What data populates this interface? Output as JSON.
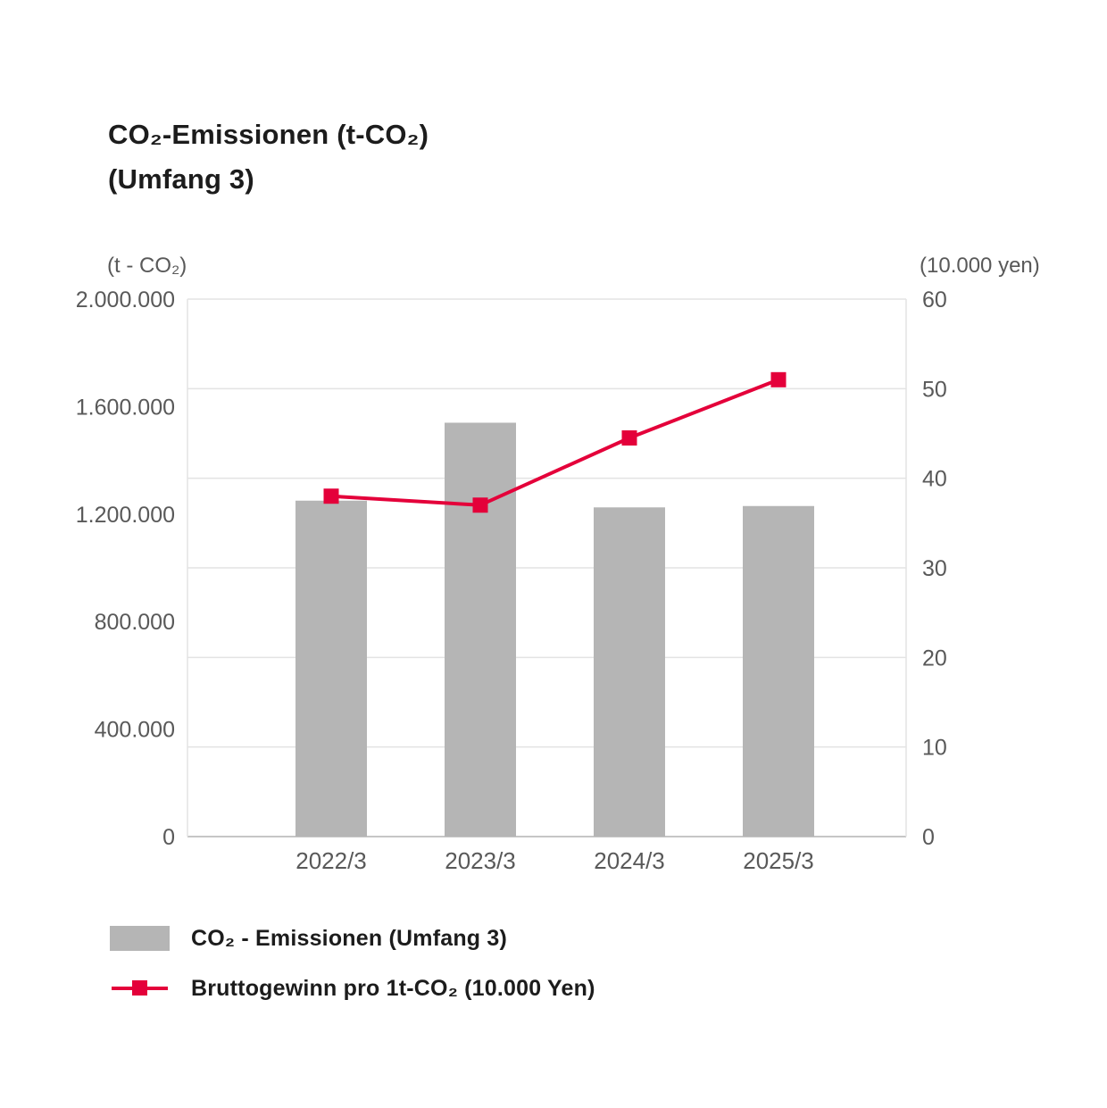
{
  "title": {
    "line1": "CO₂-Emissionen (t-CO₂)",
    "line2": "(Umfang 3)"
  },
  "left_axis_unit": "(t - CO₂)",
  "right_axis_unit": "(10.000 yen)",
  "legend": [
    {
      "label": "CO₂ - Emissionen (Umfang 3)"
    },
    {
      "label": "Bruttogewinn pro 1t-CO₂ (10.000 Yen)"
    }
  ],
  "chart_data": {
    "type": "bar",
    "subtype": "combo-bar-line",
    "title": "CO₂-Emissionen (t-CO₂) (Umfang 3)",
    "categories": [
      "2022/3",
      "2023/3",
      "2024/3",
      "2025/3"
    ],
    "series": [
      {
        "name": "CO₂ - Emissionen (Umfang 3)",
        "type": "bar",
        "axis": "left",
        "values": [
          1250000,
          1540000,
          1225000,
          1230000
        ],
        "color": "#b5b5b5"
      },
      {
        "name": "Bruttogewinn pro 1t-CO₂ (10.000 Yen)",
        "type": "line",
        "axis": "right",
        "values": [
          38,
          37,
          44.5,
          51
        ],
        "color": "#e4003a",
        "marker": "square"
      }
    ],
    "left_axis": {
      "label": "(t - CO₂)",
      "min": 0,
      "max": 2000000,
      "ticks": [
        "2.000.000",
        "1.600.000",
        "1.200.000",
        "800.000",
        "400.000",
        "0"
      ]
    },
    "right_axis": {
      "label": "(10.000 yen)",
      "min": 0,
      "max": 60,
      "ticks": [
        "60",
        "50",
        "40",
        "30",
        "20",
        "10",
        "0"
      ]
    },
    "grid": "horizontal gridlines at right-axis increments of 10",
    "legend_position": "bottom-left",
    "grid_color": "#e3e3e3",
    "axis_line_color": "#c6c6c6"
  }
}
